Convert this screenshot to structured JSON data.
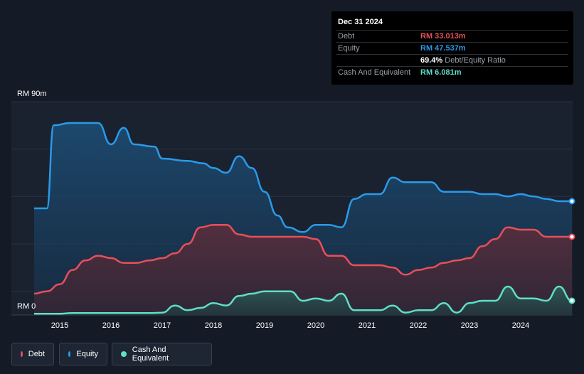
{
  "chart_data": {
    "type": "area",
    "y_axis": {
      "top_label": "RM 90m",
      "bottom_label": "RM 0",
      "ylim": [
        0,
        90
      ]
    },
    "x_ticks": [
      "2015",
      "2016",
      "2017",
      "2018",
      "2019",
      "2020",
      "2021",
      "2022",
      "2023",
      "2024"
    ],
    "x_range": [
      2014.5,
      2025.0
    ],
    "series": [
      {
        "name": "Equity",
        "color": "#2b9ae8",
        "x": [
          2014.5,
          2014.75,
          2014.88,
          2015.2,
          2015.5,
          2015.75,
          2016.0,
          2016.25,
          2016.45,
          2016.85,
          2017.0,
          2017.5,
          2017.8,
          2018.0,
          2018.25,
          2018.5,
          2018.75,
          2019.0,
          2019.25,
          2019.45,
          2019.75,
          2020.0,
          2020.25,
          2020.5,
          2020.75,
          2021.0,
          2021.25,
          2021.5,
          2021.75,
          2022.0,
          2022.25,
          2022.5,
          2022.75,
          2023.0,
          2023.25,
          2023.5,
          2023.75,
          2024.0,
          2024.25,
          2024.5,
          2024.75,
          2025.0
        ],
        "values": [
          45,
          45,
          80,
          81,
          81,
          81,
          72,
          79,
          72,
          71,
          66,
          65,
          64,
          62,
          60,
          67,
          62,
          52,
          42,
          37,
          35,
          38,
          38,
          37,
          49,
          51,
          51,
          58,
          56,
          56,
          56,
          52,
          52,
          52,
          51,
          51,
          50,
          51,
          50,
          49,
          48,
          48
        ]
      },
      {
        "name": "Debt",
        "color": "#e84f5b",
        "x": [
          2014.5,
          2014.75,
          2015.0,
          2015.25,
          2015.5,
          2015.75,
          2016.0,
          2016.25,
          2016.5,
          2016.75,
          2017.0,
          2017.25,
          2017.5,
          2017.75,
          2018.0,
          2018.25,
          2018.5,
          2018.75,
          2019.0,
          2019.25,
          2019.5,
          2019.75,
          2020.0,
          2020.25,
          2020.5,
          2020.75,
          2021.0,
          2021.25,
          2021.5,
          2021.75,
          2022.0,
          2022.25,
          2022.5,
          2022.75,
          2023.0,
          2023.25,
          2023.5,
          2023.75,
          2024.0,
          2024.25,
          2024.5,
          2024.75,
          2025.0
        ],
        "values": [
          9,
          10,
          13,
          19,
          23,
          25,
          24,
          22,
          22,
          23,
          24,
          26,
          30,
          37,
          38,
          38,
          34,
          33,
          33,
          33,
          33,
          33,
          32,
          25,
          25,
          21,
          21,
          21,
          20,
          17,
          19,
          20,
          22,
          23,
          24,
          29,
          32,
          37,
          36,
          36,
          33,
          33,
          33
        ]
      },
      {
        "name": "Cash And Equivalent",
        "color": "#5fdfc7",
        "x": [
          2014.5,
          2014.75,
          2015.0,
          2015.25,
          2015.5,
          2015.75,
          2016.0,
          2016.25,
          2016.5,
          2016.75,
          2017.0,
          2017.25,
          2017.5,
          2017.75,
          2018.0,
          2018.25,
          2018.5,
          2018.75,
          2019.0,
          2019.25,
          2019.5,
          2019.75,
          2020.0,
          2020.25,
          2020.5,
          2020.75,
          2021.0,
          2021.25,
          2021.5,
          2021.75,
          2022.0,
          2022.25,
          2022.5,
          2022.75,
          2023.0,
          2023.25,
          2023.5,
          2023.75,
          2024.0,
          2024.25,
          2024.5,
          2024.75,
          2025.0
        ],
        "values": [
          0.5,
          0.5,
          0.5,
          0.8,
          0.8,
          0.8,
          0.8,
          0.8,
          0.8,
          0.8,
          1,
          4,
          2,
          3,
          5,
          4,
          8,
          9,
          10,
          10,
          10,
          6,
          7,
          6,
          9,
          2,
          2,
          2,
          4,
          1,
          2,
          2,
          5,
          1,
          5,
          6,
          6,
          12,
          7,
          7,
          6,
          12,
          6
        ]
      }
    ],
    "end_markers": true
  },
  "tooltip": {
    "date": "Dec 31 2024",
    "rows": [
      {
        "label": "Debt",
        "value": "RM 33.013m",
        "color": "#e84f5b"
      },
      {
        "label": "Equity",
        "value": "RM 47.537m",
        "color": "#2b9ae8"
      },
      {
        "label": "",
        "value": "69.4%",
        "suffix": "Debt/Equity Ratio",
        "color": "#ffffff"
      },
      {
        "label": "Cash And Equivalent",
        "value": "RM 6.081m",
        "color": "#5fdfc7"
      }
    ]
  },
  "legend": [
    {
      "label": "Debt",
      "color": "#e84f5b"
    },
    {
      "label": "Equity",
      "color": "#2b9ae8"
    },
    {
      "label": "Cash And Equivalent",
      "color": "#5fdfc7"
    }
  ],
  "colors": {
    "background": "#151b26",
    "grid": "#2a3140",
    "plot_band": "#1a2230"
  }
}
